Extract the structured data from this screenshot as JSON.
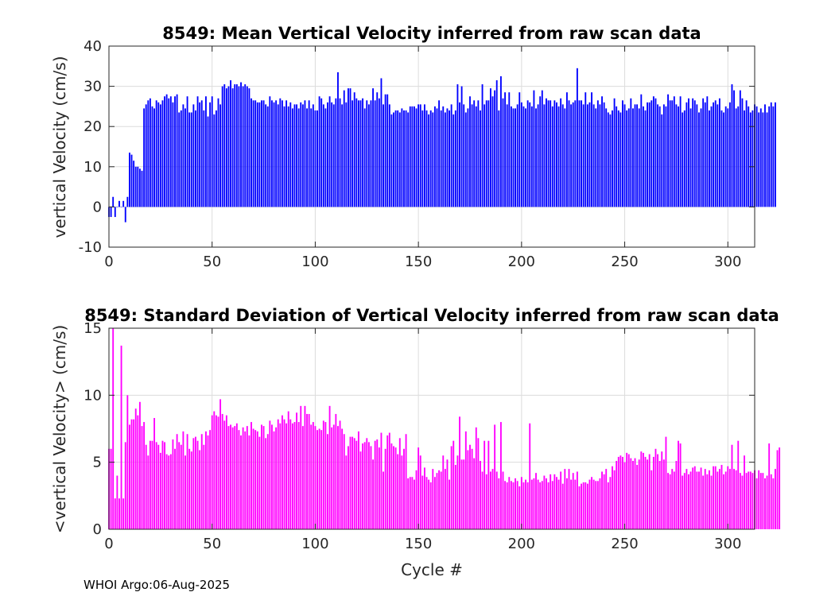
{
  "footer": "WHOI Argo:06-Aug-2025",
  "colors": {
    "mean_bar": "#0000ff",
    "std_bar": "#ff00ff",
    "axis": "#262626",
    "grid": "#dcdcdc"
  },
  "chart_data": [
    {
      "type": "bar",
      "title": "8549: Mean Vertical Velocity inferred from raw scan data",
      "xlabel": "",
      "ylabel": "vertical Velocity (cm/s)",
      "xlim": [
        0,
        313
      ],
      "ylim": [
        -10,
        40
      ],
      "xticks": [
        0,
        50,
        100,
        150,
        200,
        250,
        300
      ],
      "yticks": [
        -10,
        0,
        10,
        20,
        30,
        40
      ],
      "grid": true,
      "x_start": 0,
      "values": [
        -2.5,
        -2.5,
        2.5,
        -2.5,
        0,
        1.5,
        0,
        1.5,
        -3.8,
        2.5,
        13.5,
        13,
        11.5,
        10,
        10,
        9.5,
        9,
        24.5,
        25.5,
        26.5,
        27,
        25,
        24.5,
        26.5,
        26,
        25.5,
        26.5,
        27.5,
        28,
        27,
        27.5,
        26,
        27.5,
        28,
        23.5,
        24,
        25.5,
        24.5,
        27.5,
        23.5,
        23.5,
        25.5,
        24,
        27.5,
        26,
        26.5,
        24,
        27.5,
        22.5,
        26,
        27.5,
        23,
        24,
        27,
        25.5,
        30,
        30.5,
        29.5,
        30,
        31.5,
        29.5,
        30.5,
        30.5,
        30,
        31,
        30,
        30.5,
        30,
        29.5,
        27,
        26.5,
        26.5,
        26,
        26,
        26.5,
        26.5,
        25.5,
        25,
        27.5,
        26.5,
        26,
        26.5,
        25.5,
        27,
        26.5,
        25,
        26.5,
        25,
        26,
        24.5,
        25.5,
        25.5,
        24.5,
        26,
        25.5,
        26.5,
        24.5,
        26.5,
        24.5,
        25.5,
        24,
        24,
        27.5,
        27,
        25.5,
        24.5,
        26,
        27.5,
        26,
        25.5,
        27,
        33.5,
        27,
        25.5,
        29,
        26,
        29.5,
        29.5,
        26.5,
        28.5,
        27,
        26.5,
        26.5,
        27,
        24.5,
        26.5,
        25.5,
        26.5,
        29.5,
        26.5,
        28.5,
        27,
        32,
        25.5,
        28,
        28,
        25.5,
        23,
        23.5,
        24,
        24,
        23.5,
        24.5,
        24,
        24,
        23.5,
        25,
        25,
        25,
        24.5,
        25.5,
        25.5,
        24,
        25.5,
        24,
        23,
        24,
        23.5,
        25,
        24.5,
        26.5,
        24,
        25,
        23.5,
        24.5,
        24,
        25.5,
        23,
        24,
        30.5,
        26,
        30,
        25.5,
        23.5,
        24.5,
        27.5,
        25.5,
        26.5,
        25,
        26.5,
        24,
        30.5,
        25.5,
        26.5,
        26.5,
        29.5,
        27.5,
        29,
        31.5,
        24,
        32.5,
        27,
        28.5,
        25.5,
        28.5,
        25,
        24.5,
        24.5,
        25.5,
        28.5,
        26,
        25,
        24.5,
        26.5,
        26,
        25,
        29,
        24.5,
        25.5,
        27.5,
        29,
        25.5,
        27,
        26.5,
        26.5,
        25,
        26.5,
        26,
        25,
        27,
        25.5,
        24.5,
        28.5,
        26.5,
        25.5,
        26,
        26.5,
        34.5,
        26.5,
        26.5,
        25.5,
        28.5,
        25.5,
        26,
        28.5,
        25.5,
        24.5,
        26.5,
        25.5,
        27.5,
        26,
        24.5,
        23.5,
        23,
        24,
        27,
        25,
        24,
        23.5,
        26.5,
        25.5,
        24,
        24.5,
        27,
        24.5,
        25.5,
        25.5,
        24.5,
        28,
        25,
        24,
        26,
        26,
        26.5,
        27.5,
        27,
        25.5,
        25,
        23,
        25.5,
        25,
        28,
        26.5,
        26.5,
        27.5,
        25.5,
        25,
        27.5,
        23.5,
        24,
        26,
        27,
        24.5,
        27,
        26.5,
        25.5,
        23.5,
        24.5,
        27,
        26,
        27.5,
        24,
        25,
        26,
        26.5,
        25.5,
        27,
        24,
        23.5,
        25,
        24.5,
        26,
        30.5,
        29,
        24.5,
        25,
        29,
        27,
        24,
        26.5,
        25,
        23.5,
        24,
        25.5,
        25,
        23.5,
        24.5,
        23.5,
        25.5,
        23.5,
        25,
        26,
        25,
        26
      ]
    },
    {
      "type": "bar",
      "title": "8549: Standard Deviation of Vertical Velocity inferred from raw scan data",
      "xlabel": "Cycle #",
      "ylabel": "<vertical Velocity> (cm/s)",
      "xlim": [
        0,
        313
      ],
      "ylim": [
        0,
        15
      ],
      "xticks": [
        0,
        50,
        100,
        150,
        200,
        250,
        300
      ],
      "yticks": [
        0,
        5,
        10,
        15
      ],
      "grid": true,
      "x_start": 0,
      "values": [
        6,
        6,
        15,
        2.3,
        4,
        2.3,
        13.7,
        2.3,
        6.5,
        10,
        7.8,
        8.2,
        8.2,
        9,
        8.5,
        9.5,
        7.7,
        8,
        6.3,
        5.5,
        6.6,
        6.6,
        8.3,
        6.5,
        6.3,
        5.7,
        6.6,
        6.5,
        5.6,
        5.5,
        5.6,
        6.7,
        6,
        7.1,
        6.5,
        6.3,
        7.3,
        5.5,
        7.1,
        6,
        5.8,
        6.8,
        6.9,
        6.6,
        5.9,
        7.1,
        6.3,
        7.3,
        7,
        7.4,
        8.5,
        8.8,
        8.5,
        8.4,
        9.7,
        8.6,
        8.1,
        8.5,
        7.7,
        7.8,
        7.6,
        7.7,
        7.9,
        7.4,
        7,
        7.6,
        7.3,
        7.7,
        7,
        8,
        7.5,
        7.4,
        7.3,
        6.9,
        7.8,
        7.7,
        6.8,
        7.1,
        8.1,
        7.8,
        7.3,
        7.6,
        8.2,
        7.9,
        8.5,
        8.2,
        7.9,
        8.8,
        8.2,
        7.9,
        8,
        8.7,
        8,
        9.2,
        7.7,
        9.2,
        8.6,
        8.6,
        7.8,
        8,
        7.7,
        7.4,
        7.5,
        7.4,
        8.1,
        8,
        7.1,
        9.2,
        7.6,
        7.8,
        8.6,
        7.7,
        8.1,
        7.5,
        7.1,
        5.5,
        6.2,
        6.9,
        6.9,
        6.8,
        6.6,
        7.3,
        5.8,
        6.4,
        6.5,
        6.8,
        6.5,
        6.2,
        5.2,
        6.6,
        6.7,
        6.1,
        7.2,
        4.3,
        6,
        7,
        7.2,
        6.4,
        6.2,
        6.1,
        5.6,
        6.8,
        5.5,
        6,
        7.1,
        3.8,
        3.9,
        3.9,
        3.7,
        4.4,
        6.1,
        5.5,
        4,
        4.6,
        3.9,
        3.7,
        3.5,
        4.5,
        3.9,
        4.2,
        4.4,
        4.3,
        5.5,
        4.5,
        5.2,
        3.7,
        6.2,
        6.6,
        4.8,
        5.5,
        8.4,
        5.2,
        5.2,
        7.3,
        5.9,
        6.3,
        6,
        5.3,
        7.6,
        6.8,
        5.1,
        4.3,
        6.6,
        4.1,
        6.6,
        4.3,
        4.5,
        7.8,
        4.3,
        3.8,
        8,
        4.3,
        3.6,
        3.5,
        3.9,
        3.6,
        3.5,
        3.8,
        3.6,
        3.2,
        3.9,
        3.5,
        3.7,
        3.5,
        7.9,
        3.7,
        3.8,
        4.2,
        3.7,
        3.5,
        3.6,
        4,
        3.8,
        3.5,
        4.1,
        3.6,
        4.1,
        3.9,
        3.7,
        4.3,
        3.4,
        4.5,
        3.8,
        4.5,
        3.7,
        4.2,
        3.7,
        4.3,
        3.2,
        3.4,
        3.5,
        3.5,
        3.4,
        3.7,
        3.9,
        3.7,
        3.6,
        3.6,
        3.8,
        4.3,
        4.1,
        4.5,
        3.5,
        3.9,
        4.7,
        4.4,
        5.1,
        5.4,
        5.5,
        5.4,
        5,
        5.7,
        5.6,
        5.3,
        5.1,
        5.3,
        4.8,
        5.2,
        5.8,
        5.7,
        5.4,
        5.2,
        5.6,
        4.4,
        5.4,
        6,
        5.6,
        5.1,
        5.8,
        5.2,
        6.9,
        4.2,
        4.1,
        4.5,
        4.3,
        5.1,
        6.6,
        6.4,
        4,
        4.2,
        4.5,
        4.1,
        4.3,
        4.6,
        4.7,
        4.3,
        4.3,
        4.6,
        4,
        4.5,
        4.1,
        4.4,
        4,
        4.7,
        4.7,
        4.3,
        4.5,
        4.8,
        4.1,
        4.3,
        4.7,
        4.5,
        6.3,
        4.5,
        4.4,
        6.6,
        4.2,
        4,
        5.5,
        4.2,
        4.3,
        4.3,
        4.2,
        4.4,
        3.8,
        4.4,
        4.2,
        4.2,
        3.8,
        4,
        6.4,
        4.1,
        3.8,
        4.5,
        5.9,
        6.1
      ]
    }
  ]
}
